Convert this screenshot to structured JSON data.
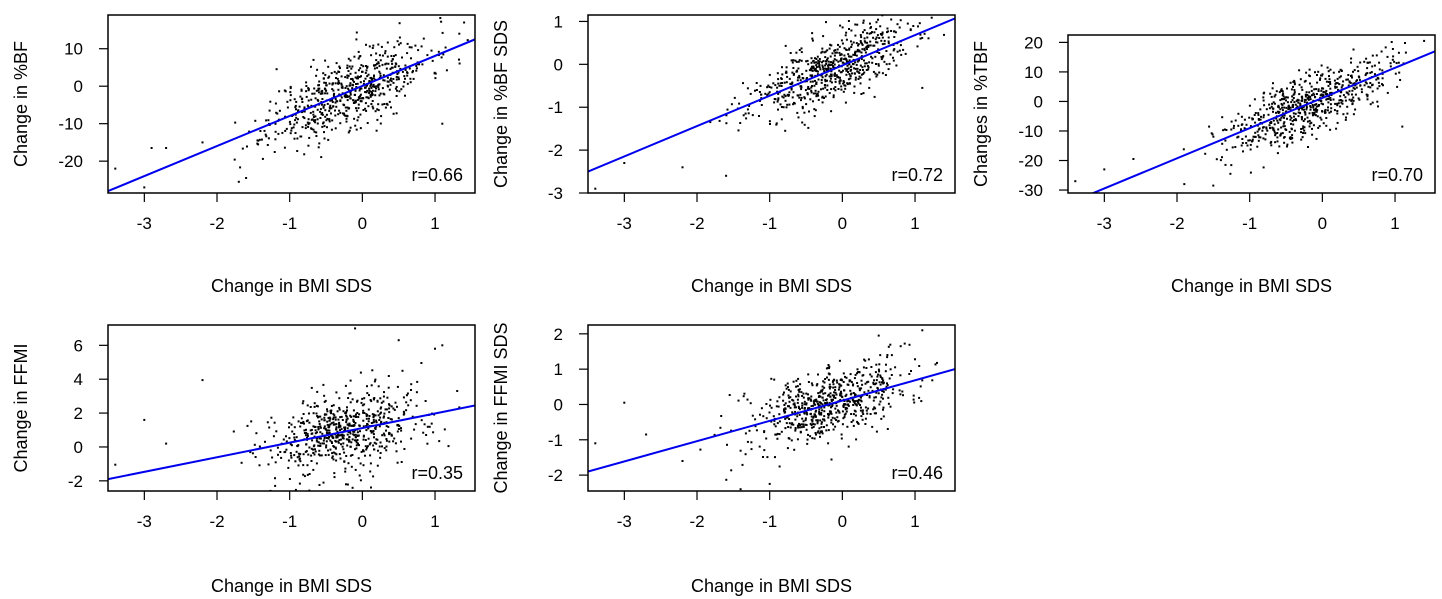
{
  "colors": {
    "fit_line": "#0000ee",
    "points": "#000000",
    "frame": "#000000"
  },
  "chart_data": [
    {
      "type": "scatter",
      "xlabel": "Change in BMI SDS",
      "ylabel": "Change in %BF",
      "xlim": [
        -3.5,
        1.55
      ],
      "ylim": [
        -28.5,
        19
      ],
      "xticks": [
        -3,
        -2,
        -1,
        0,
        1
      ],
      "yticks": [
        -20,
        -10,
        0,
        10
      ],
      "annotation": "r=0.66",
      "correlation": 0.66,
      "fit_line": {
        "x": [
          -3.5,
          1.55
        ],
        "y": [
          -28,
          12.5
        ]
      },
      "point_cloud": {
        "count": 650,
        "seed": 11,
        "x_mean": -0.2,
        "x_sd": 0.55,
        "noise_sd": 4.8
      },
      "highlighted_points": [
        {
          "x": -3.4,
          "y": -22
        },
        {
          "x": -3.0,
          "y": -27
        },
        {
          "x": -2.9,
          "y": -16.5
        },
        {
          "x": -2.7,
          "y": -16.5
        },
        {
          "x": -2.2,
          "y": -15
        },
        {
          "x": -1.7,
          "y": -25.5
        },
        {
          "x": -1.6,
          "y": -24.5
        },
        {
          "x": 1.4,
          "y": 17
        },
        {
          "x": 1.1,
          "y": -10
        }
      ]
    },
    {
      "type": "scatter",
      "xlabel": "Change in BMI SDS",
      "ylabel": "Change in %BF SDS",
      "xlim": [
        -3.5,
        1.55
      ],
      "ylim": [
        -3.0,
        1.15
      ],
      "xticks": [
        -3,
        -2,
        -1,
        0,
        1
      ],
      "yticks": [
        -3,
        -2,
        -1,
        0,
        1
      ],
      "annotation": "r=0.72",
      "correlation": 0.72,
      "fit_line": {
        "x": [
          -3.5,
          1.55
        ],
        "y": [
          -2.5,
          1.07
        ]
      },
      "point_cloud": {
        "count": 650,
        "seed": 23,
        "x_mean": -0.2,
        "x_sd": 0.55,
        "noise_sd": 0.38
      },
      "highlighted_points": [
        {
          "x": -3.4,
          "y": -2.9
        },
        {
          "x": -3.0,
          "y": -2.3
        },
        {
          "x": -2.2,
          "y": -2.4
        },
        {
          "x": -1.6,
          "y": -2.6
        },
        {
          "x": 0.9,
          "y": 0.95
        },
        {
          "x": 1.1,
          "y": -0.55
        }
      ]
    },
    {
      "type": "scatter",
      "xlabel": "Change in BMI SDS",
      "ylabel": "Changes in %TBF",
      "xlim": [
        -3.5,
        1.55
      ],
      "ylim": [
        -31,
        22.5
      ],
      "xticks": [
        -3,
        -2,
        -1,
        0,
        1
      ],
      "yticks": [
        -30,
        -20,
        -10,
        0,
        10,
        20
      ],
      "annotation": "r=0.70",
      "correlation": 0.7,
      "fit_line": {
        "x": [
          -3.2,
          1.55
        ],
        "y": [
          -31.5,
          17
        ]
      },
      "point_cloud": {
        "count": 650,
        "seed": 37,
        "x_mean": -0.2,
        "x_sd": 0.55,
        "noise_sd": 5.2
      },
      "highlighted_points": [
        {
          "x": -3.4,
          "y": -27
        },
        {
          "x": -3.0,
          "y": -23
        },
        {
          "x": -2.6,
          "y": -19.5
        },
        {
          "x": -1.9,
          "y": -28
        },
        {
          "x": -1.5,
          "y": -28.5
        },
        {
          "x": 1.4,
          "y": 20.5
        },
        {
          "x": 1.1,
          "y": -8.5
        }
      ]
    },
    {
      "type": "scatter",
      "xlabel": "Change in BMI SDS",
      "ylabel": "Change in FFMI",
      "xlim": [
        -3.5,
        1.55
      ],
      "ylim": [
        -2.6,
        7.2
      ],
      "xticks": [
        -3,
        -2,
        -1,
        0,
        1
      ],
      "yticks": [
        -2,
        0,
        2,
        4,
        6
      ],
      "annotation": "r=0.35",
      "correlation": 0.35,
      "fit_line": {
        "x": [
          -3.5,
          1.55
        ],
        "y": [
          -1.9,
          2.45
        ]
      },
      "point_cloud": {
        "count": 650,
        "seed": 53,
        "x_mean": -0.2,
        "x_sd": 0.55,
        "noise_sd": 1.2
      },
      "highlighted_points": [
        {
          "x": -3.4,
          "y": -1.05
        },
        {
          "x": -3.0,
          "y": 1.6
        },
        {
          "x": -2.7,
          "y": 0.2
        },
        {
          "x": -2.2,
          "y": 3.95
        },
        {
          "x": -0.1,
          "y": 7.0
        },
        {
          "x": 1.1,
          "y": 6.0
        },
        {
          "x": 1.0,
          "y": 5.8
        },
        {
          "x": 0.5,
          "y": 6.3
        },
        {
          "x": -1.2,
          "y": -2.3
        }
      ]
    },
    {
      "type": "scatter",
      "xlabel": "Change in BMI SDS",
      "ylabel": "Change in FFMI SDS",
      "xlim": [
        -3.5,
        1.55
      ],
      "ylim": [
        -2.45,
        2.25
      ],
      "xticks": [
        -3,
        -2,
        -1,
        0,
        1
      ],
      "yticks": [
        -2,
        -1,
        0,
        1,
        2
      ],
      "annotation": "r=0.46",
      "correlation": 0.46,
      "fit_line": {
        "x": [
          -3.5,
          1.55
        ],
        "y": [
          -1.9,
          1.0
        ]
      },
      "point_cloud": {
        "count": 650,
        "seed": 71,
        "x_mean": -0.2,
        "x_sd": 0.55,
        "noise_sd": 0.5
      },
      "highlighted_points": [
        {
          "x": -3.4,
          "y": -1.1
        },
        {
          "x": -3.0,
          "y": 0.05
        },
        {
          "x": -2.7,
          "y": -0.85
        },
        {
          "x": -2.2,
          "y": -1.6
        },
        {
          "x": -1.0,
          "y": -2.25
        },
        {
          "x": -1.4,
          "y": -2.4
        },
        {
          "x": 1.1,
          "y": 2.1
        },
        {
          "x": 0.5,
          "y": 1.95
        }
      ]
    }
  ]
}
